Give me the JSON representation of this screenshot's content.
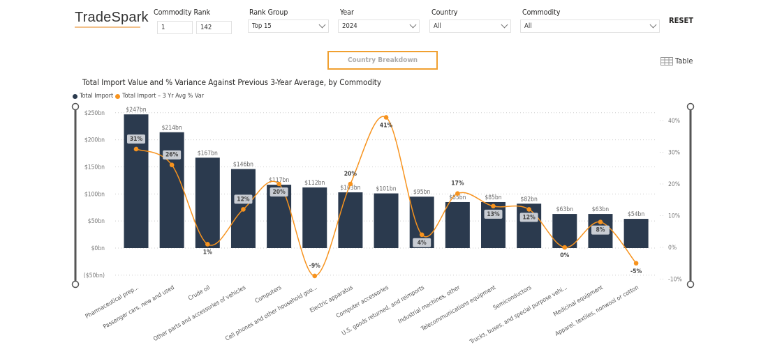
{
  "header": {
    "logo": "TradeSpark",
    "reset_label": "RESET",
    "filters": {
      "commodity_rank": {
        "label": "Commodity Rank",
        "min": "1",
        "max": "142"
      },
      "rank_group": {
        "label": "Rank Group",
        "value": "Top 15"
      },
      "year": {
        "label": "Year",
        "value": "2024"
      },
      "country": {
        "label": "Country",
        "value": "All"
      },
      "commodity": {
        "label": "Commodity",
        "value": "All"
      }
    }
  },
  "country_breakdown_label": "Country Breakdown",
  "table_label": "Table",
  "colors": {
    "bar": "#2b3a4e",
    "line": "#f7931e",
    "accent": "#f0a030"
  },
  "chart_data": {
    "type": "bar+line",
    "title": "Total Import Value and % Variance Against Previous 3-Year Average, by Commodity",
    "legend": [
      "Total Import",
      "Total Import – 3 Yr Avg % Var"
    ],
    "legend_position": "top-left",
    "categories": [
      "Pharmaceutical prep...",
      "Passenger cars, new and used",
      "Crude oil",
      "Other parts and accessories of vehicles",
      "Computers",
      "Cell phones and other household goo...",
      "Electric apparatus",
      "Computer accessories",
      "U.S. goods returned, and reimports",
      "Industrial machines, other",
      "Telecommunications equipment",
      "Semiconductors",
      "Trucks, buses, and special purpose vehi...",
      "Medicinal equipment",
      "Apparel, textiles, nonwool or cotton"
    ],
    "bar_values": [
      247,
      214,
      167,
      146,
      117,
      112,
      103,
      101,
      95,
      85,
      85,
      82,
      63,
      63,
      54
    ],
    "bar_labels": [
      "$247bn",
      "$214bn",
      "$167bn",
      "$146bn",
      "$117bn",
      "$112bn",
      "$103bn",
      "$101bn",
      "$95bn",
      "$85bn",
      "$85bn",
      "$82bn",
      "$63bn",
      "$63bn",
      "$54bn"
    ],
    "line_values": [
      31,
      26,
      1,
      12,
      20,
      -9,
      20,
      41,
      4,
      17,
      13,
      12,
      0,
      8,
      -5
    ],
    "line_labels": [
      "31%",
      "26%",
      "1%",
      "12%",
      "20%",
      "-9%",
      "20%",
      "41%",
      "4%",
      "17%",
      "13%",
      "12%",
      "0%",
      "8%",
      "-5%"
    ],
    "y_left": {
      "ticks": [
        -50,
        0,
        50,
        100,
        150,
        200,
        250
      ],
      "tick_labels": [
        "($50bn)",
        "$0bn",
        "$50bn",
        "$100bn",
        "$150bn",
        "$200bn",
        "$250bn"
      ]
    },
    "y_right": {
      "ticks": [
        -10,
        0,
        10,
        20,
        30,
        40
      ],
      "tick_labels": [
        "-10%",
        "0%",
        "10%",
        "20%",
        "30%",
        "40%"
      ]
    },
    "grid": true
  }
}
